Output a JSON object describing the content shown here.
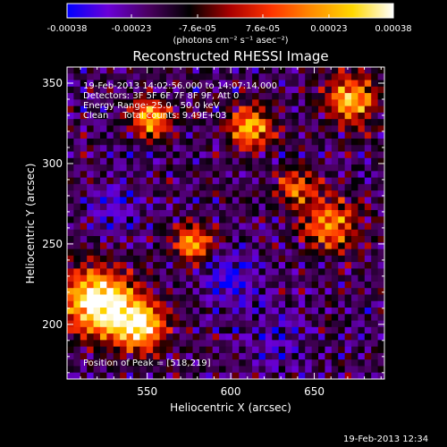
{
  "colorbar": {
    "ticks": [
      "-0.00038",
      "-0.00023",
      "-7.6e-05",
      "7.6e-05",
      "0.00023",
      "0.00038"
    ],
    "tick_values": [
      -0.00038,
      -0.00023,
      -7.6e-05,
      7.6e-05,
      0.00023,
      0.00038
    ],
    "range": [
      -0.00038,
      0.00038
    ],
    "units": "(photons cm⁻² s⁻¹ asec⁻²)",
    "stops": [
      "#0000ff",
      "#6a00d8",
      "#4a0060",
      "#000000",
      "#aa0000",
      "#ff3300",
      "#ff8c00",
      "#ffd800",
      "#ffffff"
    ]
  },
  "chart_data": {
    "type": "heatmap",
    "title": "Reconstructed RHESSI Image",
    "xlabel": "Heliocentric X (arcsec)",
    "ylabel": "Heliocentric Y (arcsec)",
    "xlim": [
      502,
      692
    ],
    "ylim": [
      166,
      360
    ],
    "xticks": [
      550,
      600,
      650
    ],
    "yticks": [
      200,
      250,
      300,
      350
    ],
    "xtick_labels": [
      "550",
      "600",
      "650"
    ],
    "ytick_labels": [
      "200",
      "250",
      "300",
      "350"
    ],
    "peak": [
      518,
      219
    ],
    "bright_regions": [
      {
        "x": 520,
        "y": 214,
        "sigma": 14,
        "amp": 1.0
      },
      {
        "x": 545,
        "y": 200,
        "sigma": 11,
        "amp": 0.85
      },
      {
        "x": 552,
        "y": 328,
        "sigma": 8,
        "amp": 0.7
      },
      {
        "x": 578,
        "y": 250,
        "sigma": 8,
        "amp": 0.65
      },
      {
        "x": 612,
        "y": 322,
        "sigma": 9,
        "amp": 0.7
      },
      {
        "x": 672,
        "y": 340,
        "sigma": 10,
        "amp": 0.75
      },
      {
        "x": 660,
        "y": 262,
        "sigma": 12,
        "amp": 0.55
      },
      {
        "x": 640,
        "y": 285,
        "sigma": 8,
        "amp": 0.5
      }
    ],
    "dark_regions": [
      {
        "x": 600,
        "y": 228,
        "sigma": 12,
        "amp": 0.8
      },
      {
        "x": 530,
        "y": 275,
        "sigma": 10,
        "amp": 0.5
      },
      {
        "x": 625,
        "y": 190,
        "sigma": 12,
        "amp": 0.45
      }
    ]
  },
  "annotations": {
    "time_range": "19-Feb-2013 14:02:56.000 to 14:07:14.000",
    "detectors": "Detectors: 3F 5F 6F 7F 8F 9F, Att 0",
    "energy": "Energy Range: 25.0 - 50.0 keV",
    "clean": "Clean     Total counts: 9.49E+03",
    "peak_label": "Position of Peak = [518,219]"
  },
  "footer": {
    "timestamp": "19-Feb-2013 12:34"
  }
}
